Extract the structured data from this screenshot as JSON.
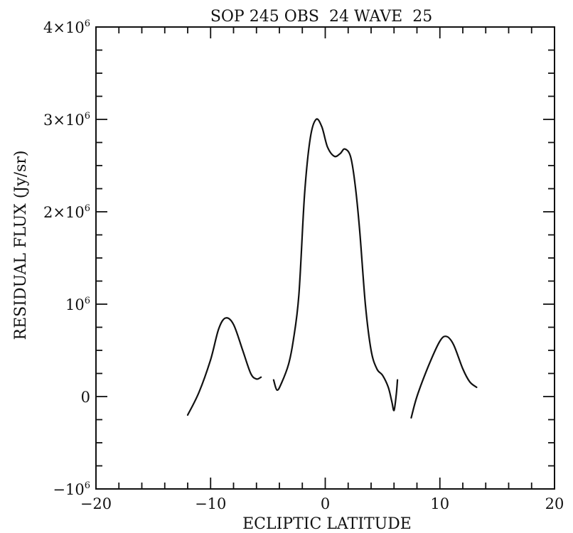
{
  "chart_data": {
    "type": "line",
    "title": "SOP 245 OBS  24 WAVE  25",
    "xlabel": "ECLIPTIC LATITUDE",
    "ylabel": "RESIDUAL FLUX (Jy/sr)",
    "xlim": [
      -20,
      20
    ],
    "ylim": [
      -1000000,
      4000000
    ],
    "x_ticks": [
      {
        "value": -20,
        "label": "−20"
      },
      {
        "value": -10,
        "label": "−10"
      },
      {
        "value": 0,
        "label": "0"
      },
      {
        "value": 10,
        "label": "10"
      },
      {
        "value": 20,
        "label": "20"
      }
    ],
    "y_ticks": [
      {
        "value": -1000000,
        "label": "−10",
        "exp": "6"
      },
      {
        "value": 0,
        "label": "0",
        "exp": ""
      },
      {
        "value": 1000000,
        "label": "10",
        "exp": "6"
      },
      {
        "value": 2000000,
        "label": "2×10",
        "exp": "6"
      },
      {
        "value": 3000000,
        "label": "3×10",
        "exp": "6"
      },
      {
        "value": 4000000,
        "label": "4×10",
        "exp": "6"
      }
    ],
    "x_minor_step": 2,
    "y_minor_step": 250000,
    "grid": false,
    "series": [
      {
        "segments": [
          [
            [
              -12.0,
              -200000
            ],
            [
              -11.0,
              50000
            ],
            [
              -10.0,
              400000
            ],
            [
              -9.3,
              730000
            ],
            [
              -8.7,
              850000
            ],
            [
              -8.0,
              780000
            ],
            [
              -7.2,
              500000
            ],
            [
              -6.5,
              250000
            ],
            [
              -6.0,
              190000
            ],
            [
              -5.6,
              210000
            ]
          ],
          [
            [
              -4.5,
              180000
            ],
            [
              -4.2,
              70000
            ],
            [
              -3.8,
              150000
            ],
            [
              -3.2,
              350000
            ],
            [
              -2.8,
              600000
            ],
            [
              -2.3,
              1100000
            ],
            [
              -1.8,
              2200000
            ],
            [
              -1.3,
              2800000
            ],
            [
              -0.8,
              3000000
            ],
            [
              -0.3,
              2920000
            ],
            [
              0.2,
              2700000
            ],
            [
              0.8,
              2600000
            ],
            [
              1.3,
              2630000
            ],
            [
              1.7,
              2680000
            ],
            [
              2.2,
              2600000
            ],
            [
              2.6,
              2300000
            ],
            [
              3.0,
              1800000
            ],
            [
              3.5,
              1000000
            ],
            [
              4.0,
              500000
            ],
            [
              4.5,
              300000
            ],
            [
              5.0,
              230000
            ],
            [
              5.5,
              100000
            ],
            [
              5.8,
              -50000
            ],
            [
              6.0,
              -150000
            ],
            [
              6.2,
              30000
            ],
            [
              6.3,
              180000
            ]
          ],
          [
            [
              7.5,
              -230000
            ],
            [
              8.0,
              0
            ],
            [
              9.0,
              330000
            ],
            [
              10.0,
              600000
            ],
            [
              10.6,
              650000
            ],
            [
              11.2,
              560000
            ],
            [
              12.0,
              300000
            ],
            [
              12.6,
              160000
            ],
            [
              13.2,
              100000
            ]
          ]
        ]
      }
    ]
  }
}
